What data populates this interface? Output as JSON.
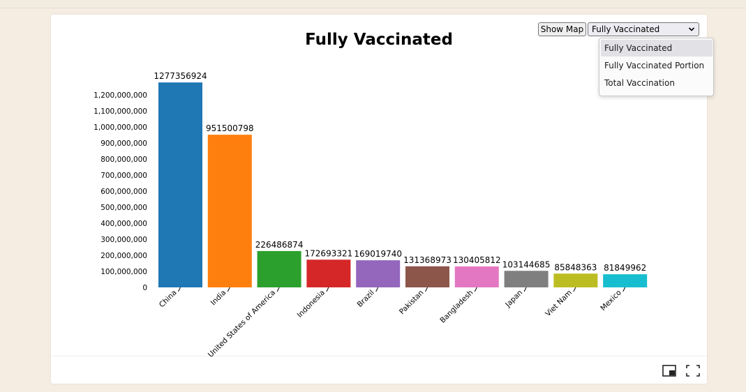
{
  "controls": {
    "show_map_label": "Show Map",
    "selected_metric": "Fully Vaccinated",
    "options": [
      "Fully Vaccinated",
      "Fully Vaccinated Portion",
      "Total Vaccination"
    ]
  },
  "icons": {
    "pip": "picture-in-picture-icon",
    "fullscreen": "fullscreen-icon"
  },
  "chart_data": {
    "type": "bar",
    "title": "Fully Vaccinated",
    "xlabel": "",
    "ylabel": "",
    "ylim": [
      0,
      1277356924
    ],
    "yticks": [
      0,
      100000000,
      200000000,
      300000000,
      400000000,
      500000000,
      600000000,
      700000000,
      800000000,
      900000000,
      1000000000,
      1100000000,
      1200000000
    ],
    "ytick_labels": [
      "0",
      "100,000,000",
      "200,000,000",
      "300,000,000",
      "400,000,000",
      "500,000,000",
      "600,000,000",
      "700,000,000",
      "800,000,000",
      "900,000,000",
      "1,000,000,000",
      "1,100,000,000",
      "1,200,000,000"
    ],
    "categories": [
      "China",
      "India",
      "United States of America",
      "Indonesia",
      "Brazil",
      "Pakistan",
      "Bangladesh",
      "Japan",
      "Viet Nam",
      "Mexico"
    ],
    "values": [
      1277356924,
      951500798,
      226486874,
      172693321,
      169019740,
      131368973,
      130405812,
      103144685,
      85848363,
      81849962
    ],
    "value_labels": [
      "1277356924",
      "951500798",
      "226486874",
      "172693321",
      "169019740",
      "131368973",
      "130405812",
      "103144685",
      "85848363",
      "81849962"
    ],
    "colors": [
      "#1f77b4",
      "#ff7f0e",
      "#2ca02c",
      "#d62728",
      "#9467bd",
      "#8c564b",
      "#e377c2",
      "#7f7f7f",
      "#bcbd22",
      "#17becf"
    ],
    "grid": false,
    "legend": "none"
  }
}
